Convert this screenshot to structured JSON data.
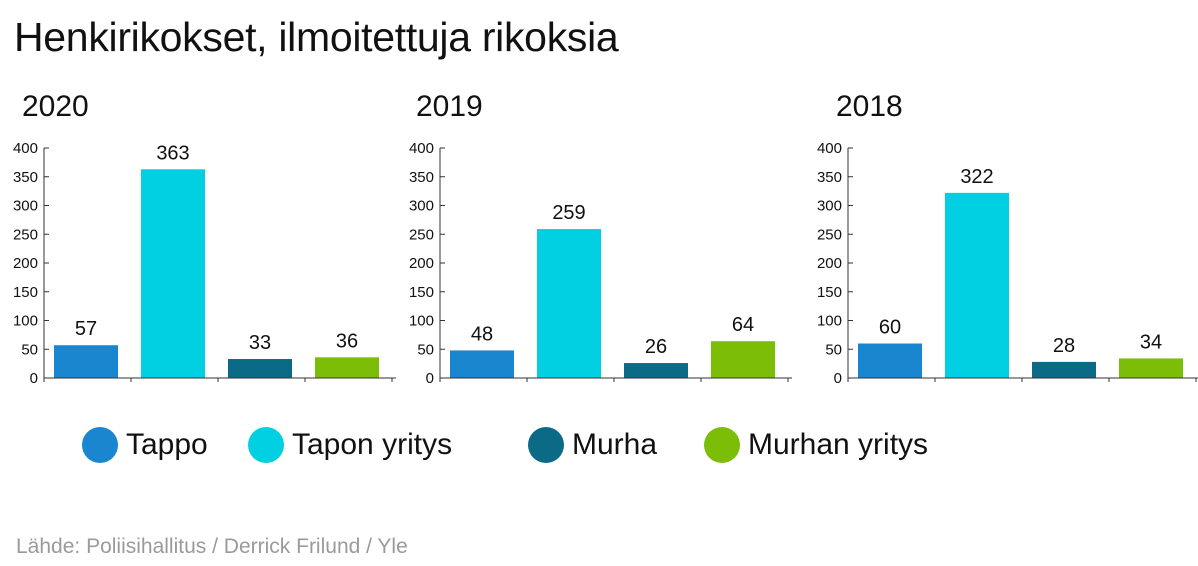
{
  "title": "Henkirikokset, ilmoitettuja rikoksia",
  "source": "Lähde: Poliisihallitus / Derrick Frilund / Yle",
  "legend": [
    {
      "label": "Tappo",
      "color": "#1a86d0"
    },
    {
      "label": "Tapon yritys",
      "color": "#00d0e2"
    },
    {
      "label": "Murha",
      "color": "#0b6a85"
    },
    {
      "label": "Murhan yritys",
      "color": "#7cbd08"
    }
  ],
  "chart_data": [
    {
      "type": "bar",
      "title": "2020",
      "categories": [
        "Tappo",
        "Tapon yritys",
        "Murha",
        "Murhan yritys"
      ],
      "values": [
        57,
        363,
        33,
        36
      ],
      "value_labels": [
        "57",
        "363",
        "33",
        "36"
      ],
      "ylim": [
        0,
        400
      ],
      "yticks": [
        "0",
        "50",
        "100",
        "150",
        "200",
        "250",
        "300",
        "350",
        "400"
      ],
      "xlabel": "",
      "ylabel": "",
      "colors": [
        "#1a86d0",
        "#00d0e2",
        "#0b6a85",
        "#7cbd08"
      ]
    },
    {
      "type": "bar",
      "title": "2019",
      "categories": [
        "Tappo",
        "Tapon yritys",
        "Murha",
        "Murhan yritys"
      ],
      "values": [
        48,
        259,
        26,
        64
      ],
      "value_labels": [
        "48",
        "259",
        "26",
        "64"
      ],
      "ylim": [
        0,
        400
      ],
      "yticks": [
        "0",
        "50",
        "100",
        "150",
        "200",
        "250",
        "300",
        "350",
        "400"
      ],
      "xlabel": "",
      "ylabel": "",
      "colors": [
        "#1a86d0",
        "#00d0e2",
        "#0b6a85",
        "#7cbd08"
      ]
    },
    {
      "type": "bar",
      "title": "2018",
      "categories": [
        "Tappo",
        "Tapon yritys",
        "Murha",
        "Murhan yritys"
      ],
      "values": [
        60,
        322,
        28,
        34
      ],
      "value_labels": [
        "60",
        "322",
        "28",
        "34"
      ],
      "ylim": [
        0,
        400
      ],
      "yticks": [
        "0",
        "50",
        "100",
        "150",
        "200",
        "250",
        "300",
        "350",
        "400"
      ],
      "xlabel": "",
      "ylabel": "",
      "colors": [
        "#1a86d0",
        "#00d0e2",
        "#0b6a85",
        "#7cbd08"
      ]
    }
  ]
}
